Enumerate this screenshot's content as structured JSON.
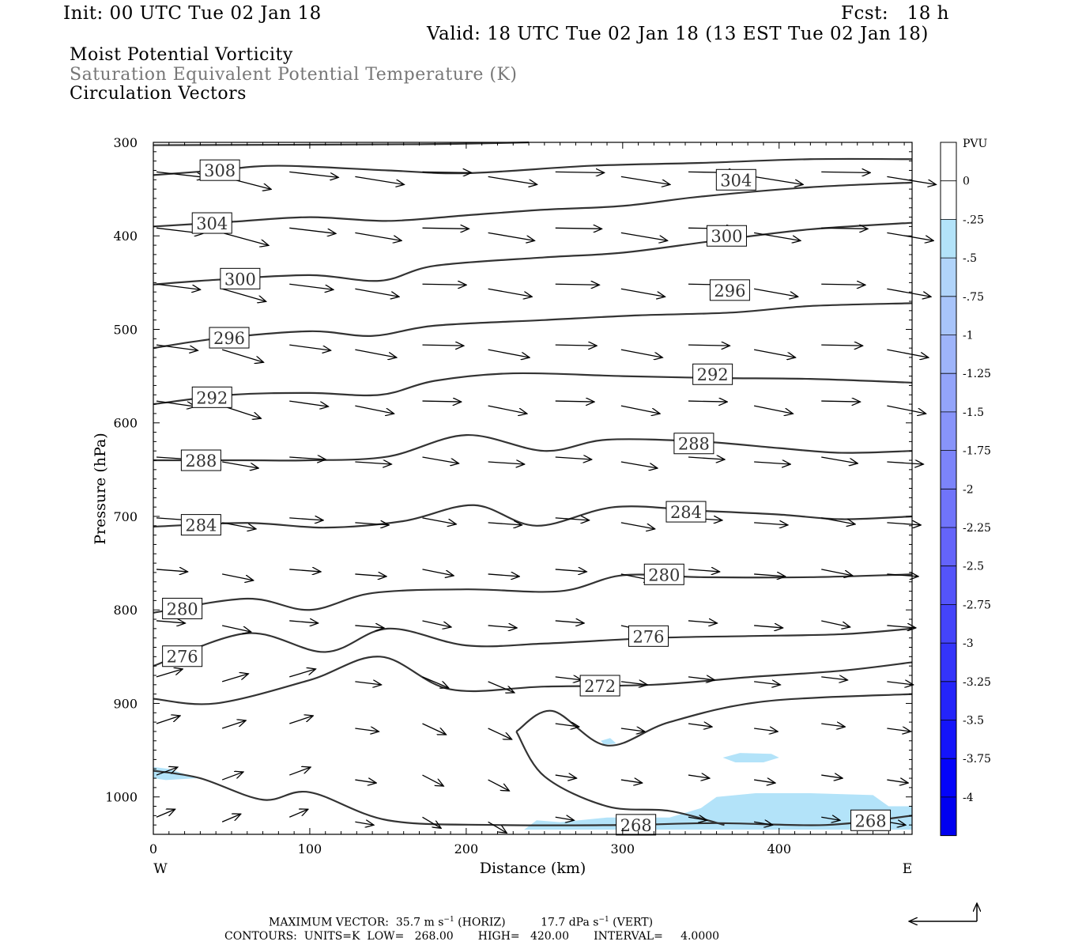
{
  "header": {
    "init": "Init: 00 UTC Tue 02 Jan 18",
    "fcst": "Fcst:   18 h",
    "valid": "Valid: 18 UTC Tue 02 Jan 18 (13 EST Tue 02 Jan 18)",
    "field1": "Moist Potential Vorticity",
    "field2": "Saturation Equivalent Potential Temperature (K)",
    "field3": "Circulation Vectors"
  },
  "colors": {
    "contour": "#333333",
    "pv_light": "#b3e3f9",
    "title_gray": "#777777"
  },
  "chart_data": {
    "type": "cross-section",
    "xlabel": "Distance (km)",
    "ylabel": "Pressure (hPa)",
    "xlim": [
      0,
      485
    ],
    "ylim": [
      1040,
      300
    ],
    "x_ticks": [
      0,
      100,
      200,
      300,
      400
    ],
    "y_ticks": [
      300,
      400,
      500,
      600,
      700,
      800,
      900,
      1000
    ],
    "left_end": "W",
    "right_end": "E",
    "colorbar": {
      "unit": "PVU",
      "levels": [
        "0",
        "-.25",
        "-.5",
        "-.75",
        "-1",
        "-1.25",
        "-1.5",
        "-1.75",
        "-2",
        "-2.25",
        "-2.5",
        "-2.75",
        "-3",
        "-3.25",
        "-3.5",
        "-3.75",
        "-4"
      ],
      "colors": [
        "#ffffff",
        "#ffffff",
        "#b3e3f9",
        "#b1d4fa",
        "#a8c4fa",
        "#9eb4fa",
        "#93a4fa",
        "#8894fa",
        "#7c84fa",
        "#7074fa",
        "#6464fa",
        "#5454fa",
        "#4444fa",
        "#3434fa",
        "#2424fa",
        "#1414fa",
        "#0404fa",
        "#0000f0"
      ]
    },
    "contours": [
      {
        "value": 308,
        "label_x": 42,
        "points": [
          [
            0,
            335
          ],
          [
            40,
            330
          ],
          [
            80,
            325
          ],
          [
            150,
            330
          ],
          [
            200,
            333
          ],
          [
            280,
            325
          ],
          [
            350,
            322
          ],
          [
            420,
            318
          ],
          [
            485,
            318
          ]
        ]
      },
      {
        "value": 304,
        "label_x": 37,
        "points": [
          [
            0,
            390
          ],
          [
            50,
            385
          ],
          [
            100,
            380
          ],
          [
            150,
            384
          ],
          [
            200,
            378
          ],
          [
            250,
            372
          ],
          [
            300,
            368
          ],
          [
            350,
            358
          ],
          [
            420,
            348
          ],
          [
            485,
            343
          ]
        ]
      },
      {
        "value": 300,
        "label_x": 55,
        "points": [
          [
            0,
            452
          ],
          [
            40,
            447
          ],
          [
            100,
            442
          ],
          [
            145,
            448
          ],
          [
            180,
            432
          ],
          [
            250,
            423
          ],
          [
            300,
            418
          ],
          [
            360,
            405
          ],
          [
            420,
            393
          ],
          [
            485,
            386
          ]
        ]
      },
      {
        "value": 296,
        "label_x": 48,
        "points": [
          [
            0,
            520
          ],
          [
            40,
            510
          ],
          [
            100,
            502
          ],
          [
            140,
            507
          ],
          [
            180,
            496
          ],
          [
            250,
            490
          ],
          [
            310,
            485
          ],
          [
            370,
            482
          ],
          [
            420,
            475
          ],
          [
            485,
            472
          ]
        ]
      },
      {
        "value": 292,
        "label_x": 37,
        "points": [
          [
            0,
            580
          ],
          [
            50,
            570
          ],
          [
            100,
            568
          ],
          [
            145,
            570
          ],
          [
            180,
            555
          ],
          [
            230,
            547
          ],
          [
            300,
            550
          ],
          [
            360,
            552
          ],
          [
            420,
            553
          ],
          [
            485,
            557
          ]
        ]
      },
      {
        "value": 288,
        "label_x": 30,
        "points": [
          [
            0,
            640
          ],
          [
            60,
            640
          ],
          [
            100,
            640
          ],
          [
            150,
            636
          ],
          [
            200,
            613
          ],
          [
            250,
            630
          ],
          [
            290,
            618
          ],
          [
            350,
            620
          ],
          [
            400,
            627
          ],
          [
            440,
            632
          ],
          [
            485,
            630
          ]
        ]
      },
      {
        "value": 284,
        "label_x": 30,
        "points": [
          [
            0,
            711
          ],
          [
            60,
            707
          ],
          [
            110,
            712
          ],
          [
            160,
            705
          ],
          [
            205,
            688
          ],
          [
            245,
            710
          ],
          [
            295,
            690
          ],
          [
            350,
            694
          ],
          [
            400,
            698
          ],
          [
            440,
            703
          ],
          [
            485,
            700
          ]
        ]
      },
      {
        "value": 280,
        "label_x": 18,
        "points": [
          [
            0,
            803
          ],
          [
            60,
            788
          ],
          [
            100,
            800
          ],
          [
            140,
            782
          ],
          [
            200,
            778
          ],
          [
            260,
            780
          ],
          [
            300,
            763
          ],
          [
            350,
            765
          ],
          [
            420,
            765
          ],
          [
            485,
            762
          ]
        ]
      },
      {
        "value": 276,
        "label_x": 18,
        "points": [
          [
            0,
            860
          ],
          [
            60,
            825
          ],
          [
            110,
            845
          ],
          [
            150,
            820
          ],
          [
            200,
            838
          ],
          [
            250,
            836
          ],
          [
            320,
            830
          ],
          [
            380,
            828
          ],
          [
            440,
            826
          ],
          [
            485,
            820
          ]
        ]
      },
      {
        "value": 272,
        "label_x": 285,
        "points": [
          [
            0,
            895
          ],
          [
            40,
            900
          ],
          [
            100,
            875
          ],
          [
            145,
            850
          ],
          [
            190,
            885
          ],
          [
            250,
            882
          ],
          [
            320,
            880
          ],
          [
            380,
            872
          ],
          [
            440,
            865
          ],
          [
            485,
            856
          ]
        ]
      },
      {
        "value": 268,
        "label_x": 308,
        "points": [
          [
            0,
            972
          ],
          [
            30,
            980
          ],
          [
            70,
            1003
          ],
          [
            100,
            995
          ],
          [
            150,
            1025
          ],
          [
            220,
            1030
          ],
          [
            300,
            1030
          ],
          [
            360,
            1028
          ],
          [
            430,
            1030
          ],
          [
            485,
            1020
          ]
        ]
      }
    ],
    "theta_268_fold": {
      "points": [
        [
          232,
          930
        ],
        [
          255,
          908
        ],
        [
          290,
          945
        ],
        [
          330,
          920
        ],
        [
          390,
          898
        ],
        [
          485,
          890
        ]
      ]
    },
    "theta_268_lower": {
      "points": [
        [
          232,
          930
        ],
        [
          250,
          978
        ],
        [
          290,
          1010
        ],
        [
          330,
          1015
        ],
        [
          365,
          1030
        ]
      ]
    },
    "vector_scale": {
      "max_horiz": "35.7",
      "max_vert": "17.7"
    }
  },
  "footer": {
    "max_vector": "MAXIMUM VECTOR:  35.7 m s",
    "max_vector_tail": "(HORIZ)          17.7 dPa s",
    "vert_tail": "(VERT)",
    "contours": "CONTOURS:  UNITS=K  LOW=   268.00       HIGH=   420.00       INTERVAL=     4.0000"
  }
}
